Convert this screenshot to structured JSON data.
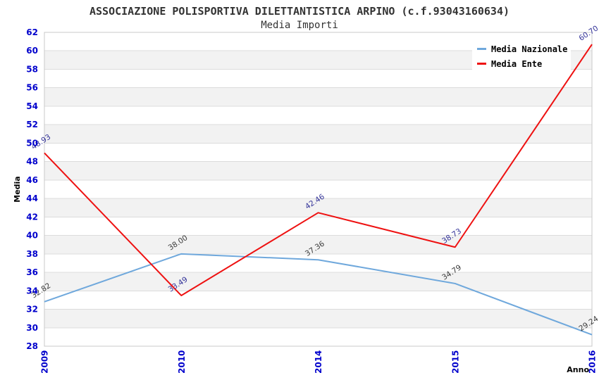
{
  "chart_data": {
    "type": "line",
    "title": "ASSOCIAZIONE POLISPORTIVA DILETTANTISTICA ARPINO (c.f.93043160634)",
    "subtitle": "Media Importi",
    "xlabel": "Anno",
    "ylabel": "Media",
    "categories": [
      "2009",
      "2010",
      "2014",
      "2015",
      "2016"
    ],
    "series": [
      {
        "name": "Media Nazionale",
        "color": "#6fa8dc",
        "label_color": "#3b3b3b",
        "values": [
          32.82,
          38.0,
          37.36,
          34.79,
          29.24
        ]
      },
      {
        "name": "Media Ente",
        "color": "#ee1111",
        "label_color": "#333399",
        "values": [
          48.93,
          33.49,
          42.46,
          38.73,
          60.7
        ]
      }
    ],
    "ylim": [
      28,
      62
    ],
    "ytick_step": 2,
    "grid": "horizontal-bands",
    "legend_position": "top-right",
    "colors": {
      "tick_label": "#0000cc",
      "axis_title": "#000000",
      "title_text": "#333333",
      "band_alt": "#f2f2f2",
      "gridline": "#dcdcdc",
      "plot_border": "#c9c9c9",
      "legend_bg": "#ffffff",
      "background": "#ffffff"
    }
  }
}
